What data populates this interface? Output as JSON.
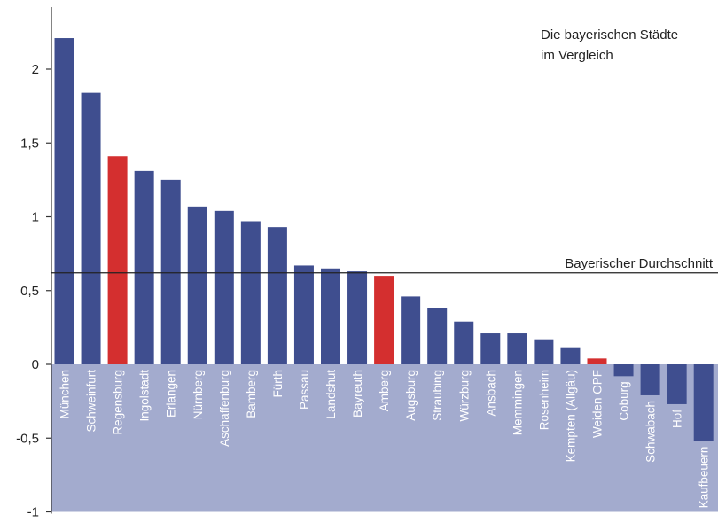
{
  "chart_data": {
    "type": "bar",
    "title": "Die bayerischen Städte",
    "subtitle": "im Vergleich",
    "xlabel": "",
    "ylabel": "",
    "ylim": [
      -1,
      2.4
    ],
    "yticks": [
      {
        "value": -1,
        "label": "-1"
      },
      {
        "value": -0.5,
        "label": "-0,5"
      },
      {
        "value": 0,
        "label": "0"
      },
      {
        "value": 0.5,
        "label": "0,5"
      },
      {
        "value": 1,
        "label": "1"
      },
      {
        "value": 1.5,
        "label": "1,5"
      },
      {
        "value": 2,
        "label": "2"
      }
    ],
    "categories": [
      "München",
      "Schweinfurt",
      "Regensburg",
      "Ingolstadt",
      "Erlangen",
      "Nürnberg",
      "Aschaffenburg",
      "Bamberg",
      "Fürth",
      "Passau",
      "Landshut",
      "Bayreuth",
      "Amberg",
      "Augsburg",
      "Straubing",
      "Würzburg",
      "Ansbach",
      "Memmingen",
      "Rosenheim",
      "Kempten (Allgäu)",
      "Weiden OPF",
      "Coburg",
      "Schwabach",
      "Hof",
      "Kaufbeuern"
    ],
    "values": [
      2.21,
      1.84,
      1.41,
      1.31,
      1.25,
      1.07,
      1.04,
      0.97,
      0.93,
      0.67,
      0.65,
      0.63,
      0.6,
      0.46,
      0.38,
      0.29,
      0.21,
      0.21,
      0.17,
      0.11,
      0.04,
      -0.08,
      -0.21,
      -0.27,
      -0.52
    ],
    "highlight": [
      "Regensburg",
      "Amberg",
      "Weiden OPF"
    ],
    "reference_line": {
      "label": "Bayerischer Durchschnitt",
      "value": 0.62
    },
    "colors": {
      "bar": "#3f4e8f",
      "highlight": "#d42f2f",
      "negative_area": "#a3abce",
      "axis": "#333333"
    },
    "grid": false
  }
}
